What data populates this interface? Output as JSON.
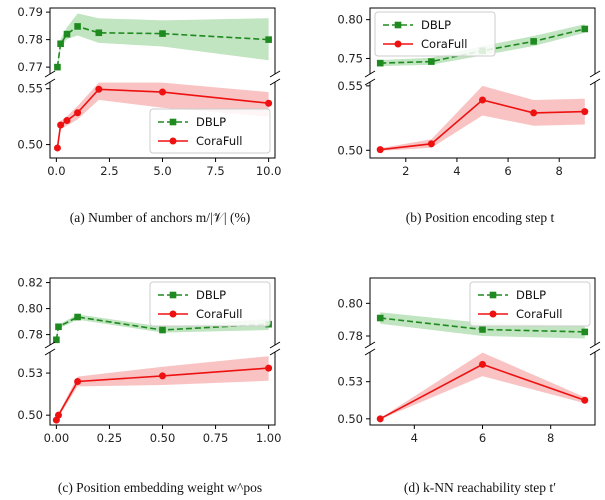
{
  "chart_data": [
    {
      "id": "a",
      "type": "line",
      "caption": "(a) Number of anchors m/|𝒱| (%)",
      "xlim": [
        -0.3,
        10.3
      ],
      "xticks": [
        "0.0",
        "2.5",
        "5.0",
        "7.5",
        "10.0"
      ],
      "xtick_values": [
        0,
        2.5,
        5,
        7.5,
        10
      ],
      "upper": {
        "ylim": [
          0.7675,
          0.7915
        ],
        "yticks": [
          "0.77",
          "0.78",
          "0.79"
        ],
        "ytick_values": [
          0.77,
          0.78,
          0.79
        ]
      },
      "lower": {
        "ylim": [
          0.488,
          0.556
        ],
        "yticks": [
          "0.50",
          "0.55"
        ],
        "ytick_values": [
          0.5,
          0.55
        ]
      },
      "legend": "bottom-right",
      "series": [
        {
          "name": "DBLP",
          "panel": "upper",
          "color": "#1f8a1f",
          "band": "#b6dfb6",
          "style": "dashed",
          "marker": "square",
          "x": [
            0.05,
            0.2,
            0.5,
            1.0,
            2.0,
            5.0,
            10.0
          ],
          "y": [
            0.77,
            0.7785,
            0.782,
            0.7848,
            0.7825,
            0.7822,
            0.78
          ],
          "lo": [
            0.769,
            0.7768,
            0.7802,
            0.7815,
            0.7788,
            0.7775,
            0.7725
          ],
          "hi": [
            0.7712,
            0.7802,
            0.7845,
            0.7895,
            0.7878,
            0.787,
            0.7878
          ]
        },
        {
          "name": "CoraFull",
          "panel": "lower",
          "color": "#ee1111",
          "band": "#f8b8b8",
          "style": "solid",
          "marker": "circle",
          "x": [
            0.05,
            0.2,
            0.5,
            1.0,
            2.0,
            5.0,
            10.0
          ],
          "y": [
            0.497,
            0.5175,
            0.5215,
            0.5285,
            0.5495,
            0.547,
            0.537
          ],
          "lo": [
            0.495,
            0.514,
            0.517,
            0.5225,
            0.54,
            0.533,
            0.525
          ],
          "hi": [
            0.499,
            0.521,
            0.5255,
            0.5345,
            0.5555,
            0.5555,
            0.547
          ]
        }
      ]
    },
    {
      "id": "b",
      "type": "line",
      "caption": "(b) Position encoding step t",
      "xlim": [
        0.6,
        9.4
      ],
      "xticks": [
        "2",
        "4",
        "6",
        "8"
      ],
      "xtick_values": [
        2,
        4,
        6,
        8
      ],
      "upper": {
        "ylim": [
          0.73,
          0.815
        ],
        "yticks": [
          "0.75",
          "0.80"
        ],
        "ytick_values": [
          0.75,
          0.8
        ]
      },
      "lower": {
        "ylim": [
          0.494,
          0.553
        ],
        "yticks": [
          "0.50",
          "0.55"
        ],
        "ytick_values": [
          0.5,
          0.55
        ]
      },
      "legend": "top-left",
      "series": [
        {
          "name": "DBLP",
          "panel": "upper",
          "color": "#1f8a1f",
          "band": "#b6dfb6",
          "style": "dashed",
          "marker": "square",
          "x": [
            1,
            3,
            5,
            7,
            9
          ],
          "y": [
            0.744,
            0.746,
            0.76,
            0.772,
            0.788
          ],
          "lo": [
            0.74,
            0.742,
            0.754,
            0.766,
            0.783
          ],
          "hi": [
            0.748,
            0.751,
            0.766,
            0.779,
            0.794
          ]
        },
        {
          "name": "CoraFull",
          "panel": "lower",
          "color": "#ee1111",
          "band": "#f8b8b8",
          "style": "solid",
          "marker": "circle",
          "x": [
            1,
            3,
            5,
            7,
            9
          ],
          "y": [
            0.5005,
            0.505,
            0.539,
            0.529,
            0.53
          ],
          "lo": [
            0.4995,
            0.502,
            0.527,
            0.519,
            0.52
          ],
          "hi": [
            0.5015,
            0.5085,
            0.55,
            0.539,
            0.54
          ]
        }
      ]
    },
    {
      "id": "c",
      "type": "line",
      "caption": "(c) Position embedding weight w^pos",
      "xlim": [
        -0.03,
        1.03
      ],
      "xticks": [
        "0.00",
        "0.25",
        "0.50",
        "0.75",
        "1.00"
      ],
      "xtick_values": [
        0,
        0.25,
        0.5,
        0.75,
        1.0
      ],
      "upper": {
        "ylim": [
          0.772,
          0.8235
        ],
        "yticks": [
          "0.78",
          "0.80",
          "0.82"
        ],
        "ytick_values": [
          0.78,
          0.8,
          0.82
        ]
      },
      "lower": {
        "ylim": [
          0.493,
          0.545
        ],
        "yticks": [
          "0.50",
          "0.53"
        ],
        "ytick_values": [
          0.5,
          0.53
        ]
      },
      "legend": "top-right",
      "series": [
        {
          "name": "DBLP",
          "panel": "upper",
          "color": "#1f8a1f",
          "band": "#b6dfb6",
          "style": "dashed",
          "marker": "square",
          "x": [
            0.0,
            0.01,
            0.1,
            0.5,
            1.0
          ],
          "y": [
            0.776,
            0.786,
            0.7935,
            0.7835,
            0.788
          ],
          "lo": [
            0.7745,
            0.7845,
            0.7915,
            0.7815,
            0.7835
          ],
          "hi": [
            0.7775,
            0.7875,
            0.7955,
            0.786,
            0.792
          ]
        },
        {
          "name": "CoraFull",
          "panel": "lower",
          "color": "#ee1111",
          "band": "#f8b8b8",
          "style": "solid",
          "marker": "circle",
          "x": [
            0.0,
            0.01,
            0.1,
            0.5,
            1.0
          ],
          "y": [
            0.4965,
            0.5,
            0.524,
            0.528,
            0.5335
          ],
          "lo": [
            0.4955,
            0.4985,
            0.5205,
            0.5215,
            0.5245
          ],
          "hi": [
            0.4975,
            0.5015,
            0.5275,
            0.5345,
            0.542
          ]
        }
      ]
    },
    {
      "id": "d",
      "type": "line",
      "caption": "(d) k-NN reachability step t′",
      "xlim": [
        2.7,
        9.3
      ],
      "xticks": [
        "4",
        "6",
        "8"
      ],
      "xtick_values": [
        4,
        6,
        8
      ],
      "upper": {
        "ylim": [
          0.7745,
          0.8155
        ],
        "yticks": [
          "0.78",
          "0.80"
        ],
        "ytick_values": [
          0.78,
          0.8
        ]
      },
      "lower": {
        "ylim": [
          0.495,
          0.554
        ],
        "yticks": [
          "0.50",
          "0.53"
        ],
        "ytick_values": [
          0.5,
          0.53
        ]
      },
      "legend": "top-right",
      "series": [
        {
          "name": "DBLP",
          "panel": "upper",
          "color": "#1f8a1f",
          "band": "#b6dfb6",
          "style": "dashed",
          "marker": "square",
          "x": [
            3,
            6,
            9
          ],
          "y": [
            0.791,
            0.784,
            0.7825
          ],
          "lo": [
            0.7875,
            0.78,
            0.7785
          ],
          "hi": [
            0.7945,
            0.788,
            0.7865
          ]
        },
        {
          "name": "CoraFull",
          "panel": "lower",
          "color": "#ee1111",
          "band": "#f8b8b8",
          "style": "solid",
          "marker": "circle",
          "x": [
            3,
            6,
            9
          ],
          "y": [
            0.5,
            0.544,
            0.515
          ],
          "lo": [
            0.4995,
            0.5345,
            0.5125
          ],
          "hi": [
            0.5005,
            0.5535,
            0.5175
          ]
        }
      ]
    }
  ]
}
